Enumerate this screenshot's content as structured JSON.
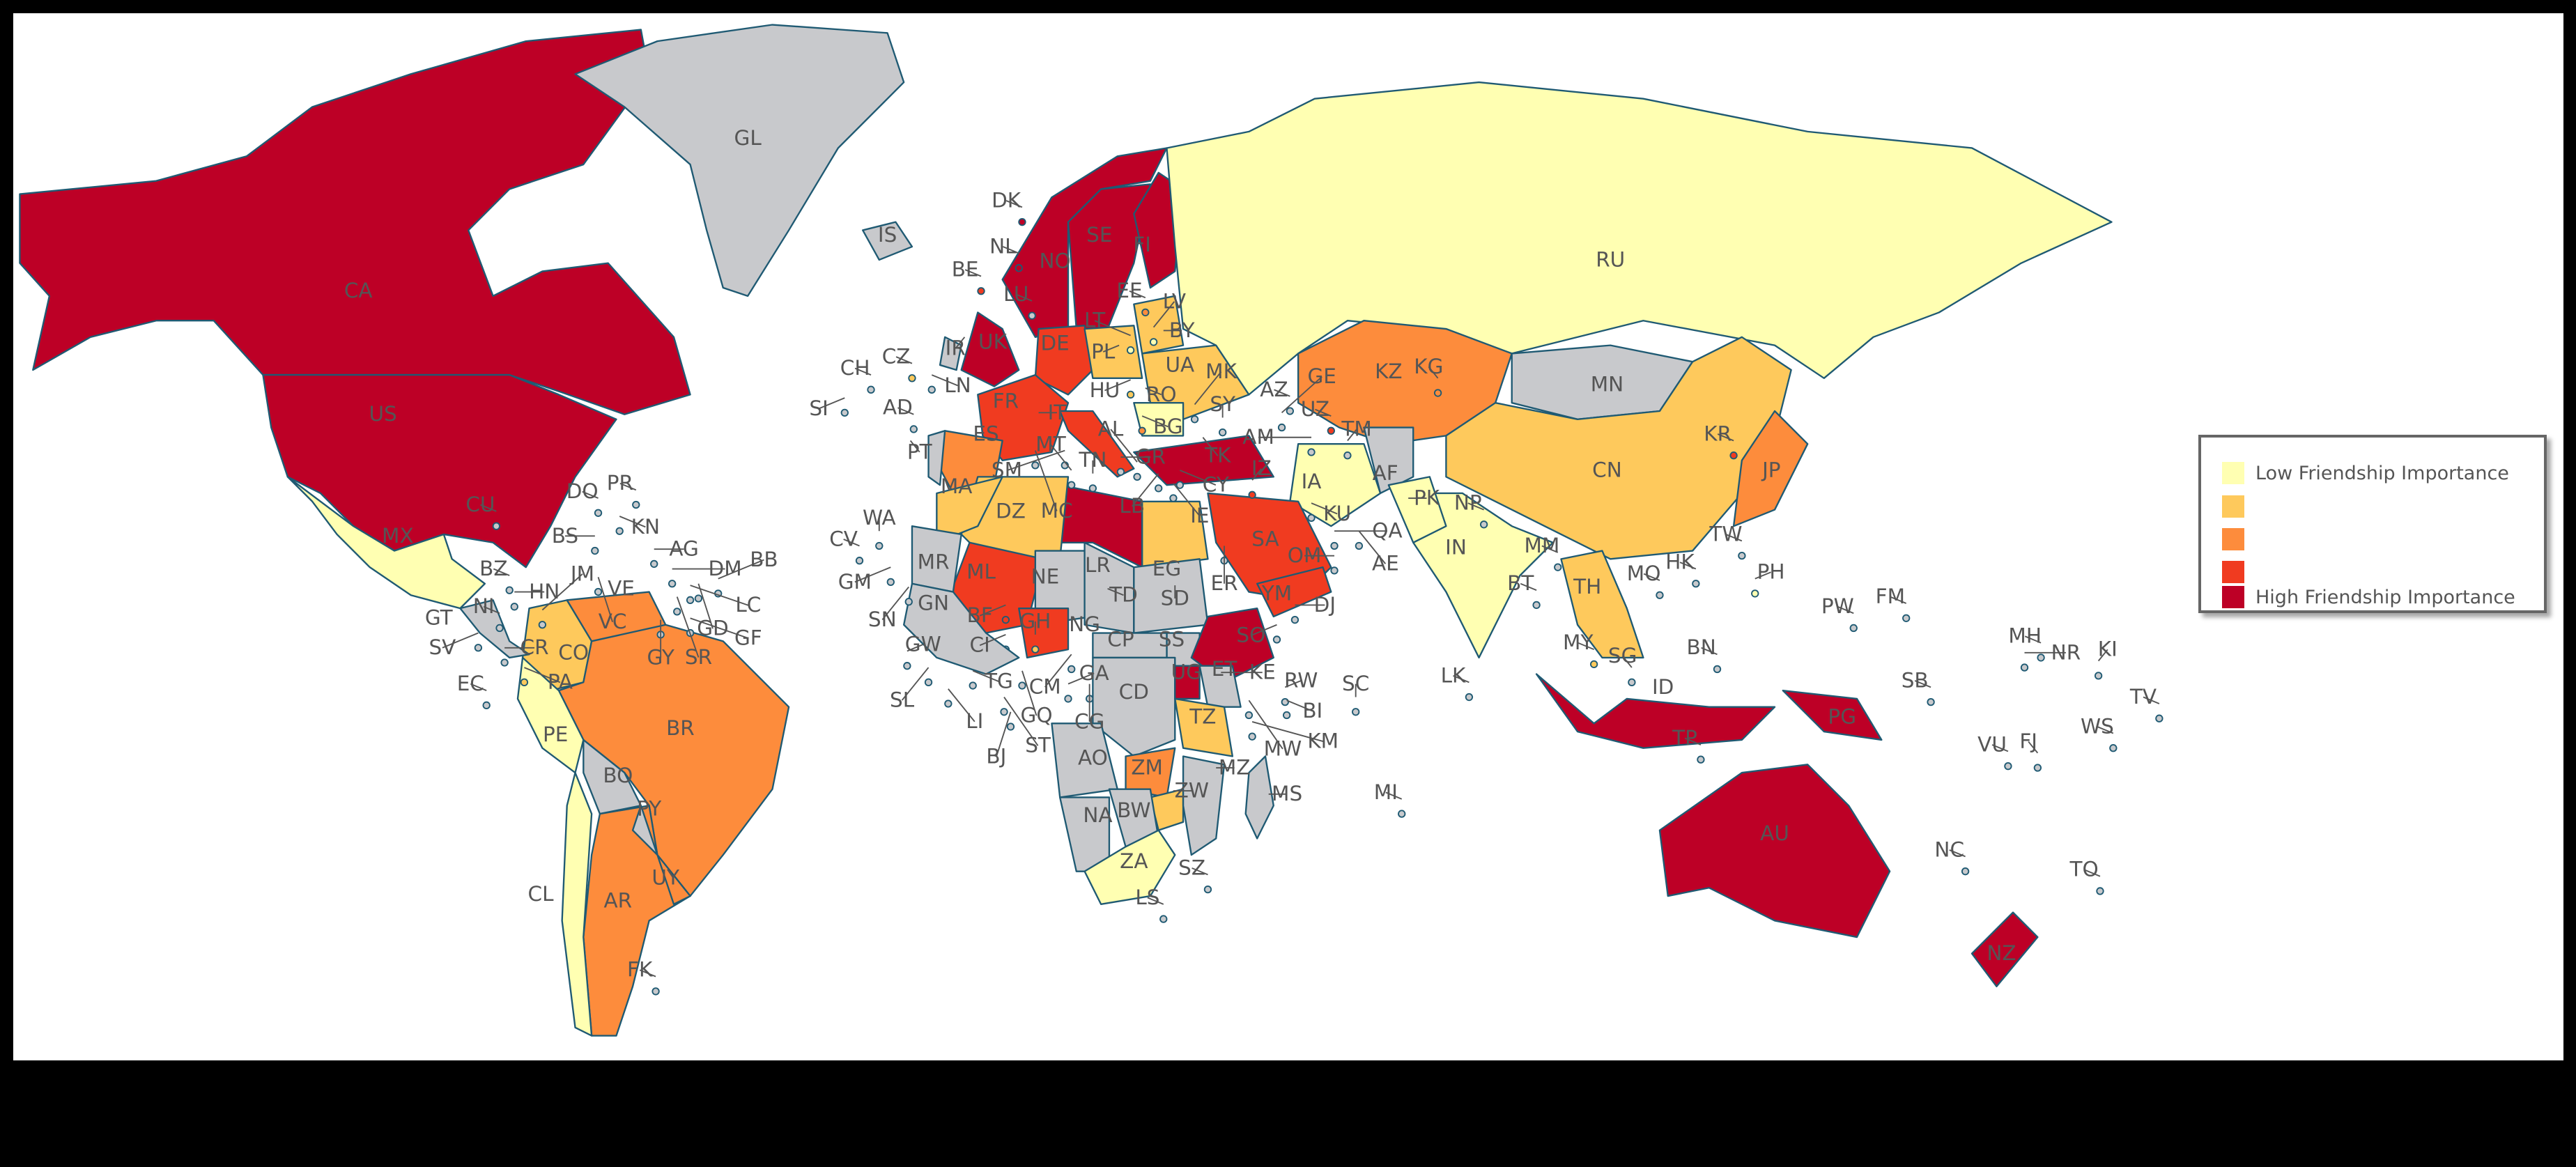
{
  "colors": {
    "no_data": "#c8c9cc",
    "outline": "#1f5a73",
    "levels": [
      "#ffffb2",
      "#fec95c",
      "#fd8c3c",
      "#f03b20",
      "#bd0026"
    ]
  },
  "legend": {
    "placement": "right",
    "items": [
      {
        "label": "Low Friendship Importance",
        "level": 1
      },
      {
        "label": "",
        "level": 2
      },
      {
        "label": "",
        "level": 3
      },
      {
        "label": "",
        "level": 4
      },
      {
        "label": "High Friendship Importance",
        "level": 5
      }
    ]
  },
  "countries": [
    {
      "code": "CA",
      "level": 5
    },
    {
      "code": "US",
      "level": 5
    },
    {
      "code": "MX",
      "level": 1
    },
    {
      "code": "GL",
      "level": 0
    },
    {
      "code": "IS",
      "level": 0
    },
    {
      "code": "CO",
      "level": 2
    },
    {
      "code": "VE",
      "level": 3
    },
    {
      "code": "BR",
      "level": 3
    },
    {
      "code": "PE",
      "level": 1
    },
    {
      "code": "BO",
      "level": 0
    },
    {
      "code": "AR",
      "level": 3
    },
    {
      "code": "CL",
      "level": 1
    },
    {
      "code": "PY",
      "level": 0
    },
    {
      "code": "UY",
      "level": 3
    },
    {
      "code": "FK",
      "level": 0
    },
    {
      "code": "SE",
      "level": 5
    },
    {
      "code": "NO",
      "level": 5
    },
    {
      "code": "FI",
      "level": 5
    },
    {
      "code": "UK",
      "level": 5
    },
    {
      "code": "IR",
      "level": 0
    },
    {
      "code": "DE",
      "level": 4
    },
    {
      "code": "PL",
      "level": 2
    },
    {
      "code": "BY",
      "level": 2
    },
    {
      "code": "UA",
      "level": 2
    },
    {
      "code": "RO",
      "level": 1
    },
    {
      "code": "FR",
      "level": 4
    },
    {
      "code": "ES",
      "level": 3
    },
    {
      "code": "PT",
      "level": 0
    },
    {
      "code": "IT",
      "level": 4
    },
    {
      "code": "BG",
      "level": 3
    },
    {
      "code": "RU",
      "level": 1
    },
    {
      "code": "KZ",
      "level": 3
    },
    {
      "code": "MN",
      "level": 0
    },
    {
      "code": "CN",
      "level": 2
    },
    {
      "code": "IN",
      "level": 1
    },
    {
      "code": "IA",
      "level": 1
    },
    {
      "code": "AF",
      "level": 0
    },
    {
      "code": "PK",
      "level": 1
    },
    {
      "code": "TK",
      "level": 5
    },
    {
      "code": "SA",
      "level": 4
    },
    {
      "code": "YM",
      "level": 4
    },
    {
      "code": "EG",
      "level": 2
    },
    {
      "code": "LR",
      "level": 5
    },
    {
      "code": "DZ",
      "level": 2
    },
    {
      "code": "MA",
      "level": 2
    },
    {
      "code": "ML",
      "level": 4
    },
    {
      "code": "NE",
      "level": 0
    },
    {
      "code": "TD",
      "level": 0
    },
    {
      "code": "SD",
      "level": 0
    },
    {
      "code": "SS",
      "level": 0
    },
    {
      "code": "CP",
      "level": 0
    },
    {
      "code": "CD",
      "level": 0
    },
    {
      "code": "ET",
      "level": 5
    },
    {
      "code": "KE",
      "level": 0
    },
    {
      "code": "UG",
      "level": 5
    },
    {
      "code": "TZ",
      "level": 2
    },
    {
      "code": "AO",
      "level": 0
    },
    {
      "code": "ZM",
      "level": 3
    },
    {
      "code": "ZW",
      "level": 2
    },
    {
      "code": "MZ",
      "level": 0
    },
    {
      "code": "NA",
      "level": 0
    },
    {
      "code": "BW",
      "level": 0
    },
    {
      "code": "ZA",
      "level": 1
    },
    {
      "code": "MS",
      "level": 0
    },
    {
      "code": "NG",
      "level": 4
    },
    {
      "code": "GH",
      "level": 2
    },
    {
      "code": "MR",
      "level": 0
    },
    {
      "code": "AU",
      "level": 5
    },
    {
      "code": "NZ",
      "level": 5
    },
    {
      "code": "PG",
      "level": 5
    },
    {
      "code": "ID",
      "level": 5
    },
    {
      "code": "TH",
      "level": 2
    },
    {
      "code": "MM",
      "level": 0
    },
    {
      "code": "JP",
      "level": 3
    },
    {
      "code": "KR",
      "level": 4
    },
    {
      "code": "UZ",
      "level": 4
    },
    {
      "code": "KG",
      "level": 3
    },
    {
      "code": "TM",
      "level": 0
    },
    {
      "code": "IZ",
      "level": 4
    },
    {
      "code": "CM",
      "level": 0
    },
    {
      "code": "BF",
      "level": 4
    },
    {
      "code": "CI",
      "level": 0
    },
    {
      "code": "GN",
      "level": 0
    },
    {
      "code": "GA",
      "level": 0
    },
    {
      "code": "CG",
      "level": 0
    },
    {
      "code": "AZ",
      "level": 0
    },
    {
      "code": "AM",
      "level": 0
    },
    {
      "code": "SY",
      "level": 0
    },
    {
      "code": "OM",
      "level": 0
    },
    {
      "code": "DK",
      "level": 5
    },
    {
      "code": "NL",
      "level": 5
    },
    {
      "code": "BE",
      "level": 4
    },
    {
      "code": "LU",
      "level": 0
    },
    {
      "code": "CZ",
      "level": 2
    },
    {
      "code": "CH",
      "level": 0
    },
    {
      "code": "LN",
      "level": 0
    },
    {
      "code": "SI",
      "level": 0
    },
    {
      "code": "AD",
      "level": 0
    },
    {
      "code": "CV",
      "level": 0
    },
    {
      "code": "WA",
      "level": 0
    },
    {
      "code": "GM",
      "level": 0
    },
    {
      "code": "SN",
      "level": 0
    },
    {
      "code": "GW",
      "level": 0
    },
    {
      "code": "SL",
      "level": 0
    },
    {
      "code": "LI",
      "level": 0
    },
    {
      "code": "TG",
      "level": 0
    },
    {
      "code": "GQ",
      "level": 0
    },
    {
      "code": "ST",
      "level": 0
    },
    {
      "code": "BJ",
      "level": 0
    },
    {
      "code": "GT",
      "level": 0
    },
    {
      "code": "SV",
      "level": 0
    },
    {
      "code": "CR",
      "level": 0
    },
    {
      "code": "PA",
      "level": 2
    },
    {
      "code": "EC",
      "level": 0
    },
    {
      "code": "HN",
      "level": 0
    },
    {
      "code": "NI",
      "level": 0
    },
    {
      "code": "BZ",
      "level": 0
    },
    {
      "code": "CU",
      "level": 0
    },
    {
      "code": "JM",
      "level": 0
    },
    {
      "code": "BS",
      "level": 0
    },
    {
      "code": "DO",
      "level": 0
    },
    {
      "code": "KN",
      "level": 0
    },
    {
      "code": "PR",
      "level": 0
    },
    {
      "code": "AG",
      "level": 0
    },
    {
      "code": "DM",
      "level": 0
    },
    {
      "code": "LC",
      "level": 0
    },
    {
      "code": "VC",
      "level": 0
    },
    {
      "code": "GD",
      "level": 0
    },
    {
      "code": "BB",
      "level": 0
    },
    {
      "code": "SR",
      "level": 0
    },
    {
      "code": "GY",
      "level": 0
    },
    {
      "code": "GF",
      "level": 0
    },
    {
      "code": "EE",
      "level": 3
    },
    {
      "code": "LV",
      "level": 1
    },
    {
      "code": "LT",
      "level": 1
    },
    {
      "code": "HU",
      "level": 2
    },
    {
      "code": "MK",
      "level": 0
    },
    {
      "code": "GE",
      "level": 0
    },
    {
      "code": "TN",
      "level": 0
    },
    {
      "code": "MT",
      "level": 0
    },
    {
      "code": "GR",
      "level": 0
    },
    {
      "code": "AL",
      "level": 0
    },
    {
      "code": "SM",
      "level": 0
    },
    {
      "code": "MC",
      "level": 0
    },
    {
      "code": "CY",
      "level": 0
    },
    {
      "code": "LB",
      "level": 0
    },
    {
      "code": "IE",
      "level": 0
    },
    {
      "code": "KU",
      "level": 0
    },
    {
      "code": "QA",
      "level": 0
    },
    {
      "code": "AE",
      "level": 0
    },
    {
      "code": "ER",
      "level": 0
    },
    {
      "code": "DJ",
      "level": 0
    },
    {
      "code": "SO",
      "level": 0
    },
    {
      "code": "RW",
      "level": 0
    },
    {
      "code": "BI",
      "level": 0
    },
    {
      "code": "MW",
      "level": 0
    },
    {
      "code": "KM",
      "level": 0
    },
    {
      "code": "SC",
      "level": 0
    },
    {
      "code": "MI",
      "level": 0
    },
    {
      "code": "SZ",
      "level": 0
    },
    {
      "code": "LS",
      "level": 0
    },
    {
      "code": "NP",
      "level": 0
    },
    {
      "code": "BT",
      "level": 0
    },
    {
      "code": "LK",
      "level": 0
    },
    {
      "code": "TW",
      "level": 0
    },
    {
      "code": "PH",
      "level": 1
    },
    {
      "code": "HK",
      "level": 0
    },
    {
      "code": "MO",
      "level": 0
    },
    {
      "code": "BN",
      "level": 0
    },
    {
      "code": "SG",
      "level": 0
    },
    {
      "code": "MY",
      "level": 2
    },
    {
      "code": "TP",
      "level": 0
    },
    {
      "code": "PW",
      "level": 0
    },
    {
      "code": "FM",
      "level": 0
    },
    {
      "code": "MH",
      "level": 0
    },
    {
      "code": "NR",
      "level": 0
    },
    {
      "code": "KI",
      "level": 0
    },
    {
      "code": "SB",
      "level": 0
    },
    {
      "code": "VU",
      "level": 0
    },
    {
      "code": "FJ",
      "level": 0
    },
    {
      "code": "WS",
      "level": 0
    },
    {
      "code": "TV",
      "level": 0
    },
    {
      "code": "TO",
      "level": 0
    },
    {
      "code": "NC",
      "level": 0
    }
  ]
}
